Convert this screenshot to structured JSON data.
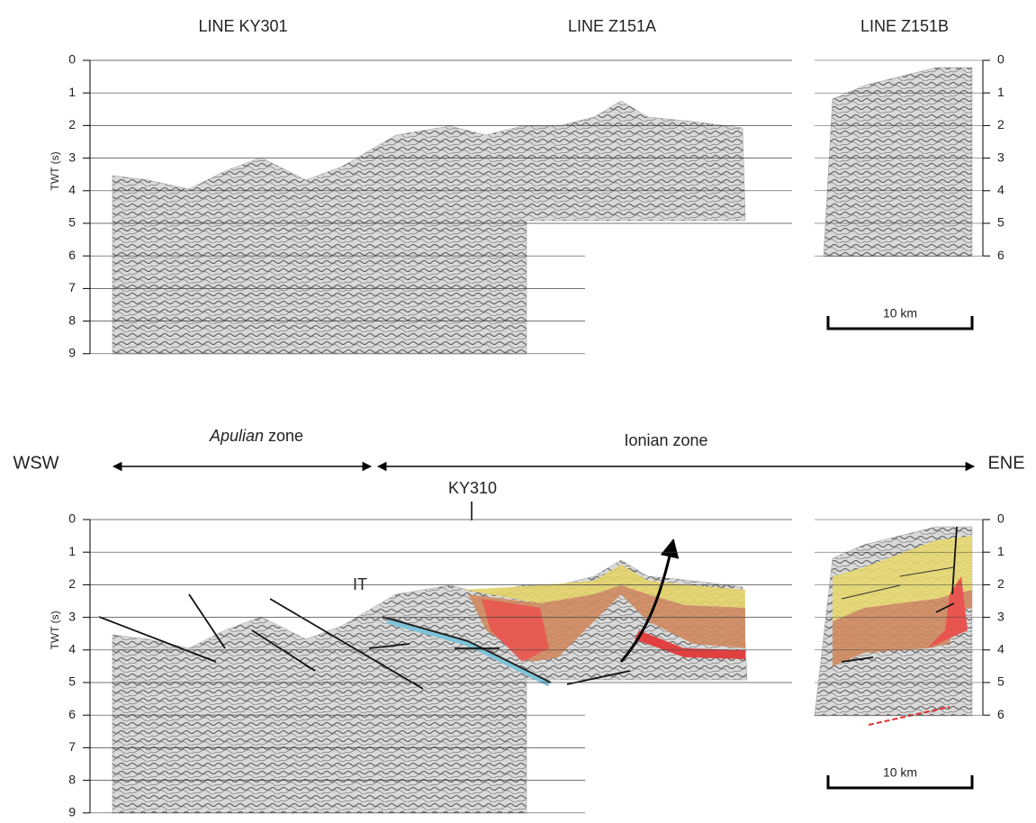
{
  "top_panel": {
    "titles": [
      "LINE KY301",
      "LINE Z151A",
      "LINE Z151B"
    ],
    "left_axis": {
      "label": "TWT (s)",
      "ticks": [
        0,
        1,
        2,
        3,
        4,
        5,
        6,
        7,
        8,
        9
      ]
    },
    "right_axis": {
      "ticks": [
        0,
        1,
        2,
        3,
        4,
        5,
        6
      ]
    },
    "scale_bar": "10 km"
  },
  "bottom_panel": {
    "zones": [
      {
        "name": "Apulian",
        "suffix": "zone"
      },
      {
        "name": "Ionian zone"
      }
    ],
    "directions": [
      "WSW",
      "ENE"
    ],
    "well": "KY310",
    "thrust": "IT",
    "left_axis": {
      "label": "TWT (s)",
      "ticks": [
        0,
        1,
        2,
        3,
        4,
        5,
        6,
        7,
        8,
        9
      ]
    },
    "right_axis": {
      "ticks": [
        0,
        1,
        2,
        3,
        4,
        5,
        6
      ]
    },
    "scale_bar": "10 km"
  }
}
